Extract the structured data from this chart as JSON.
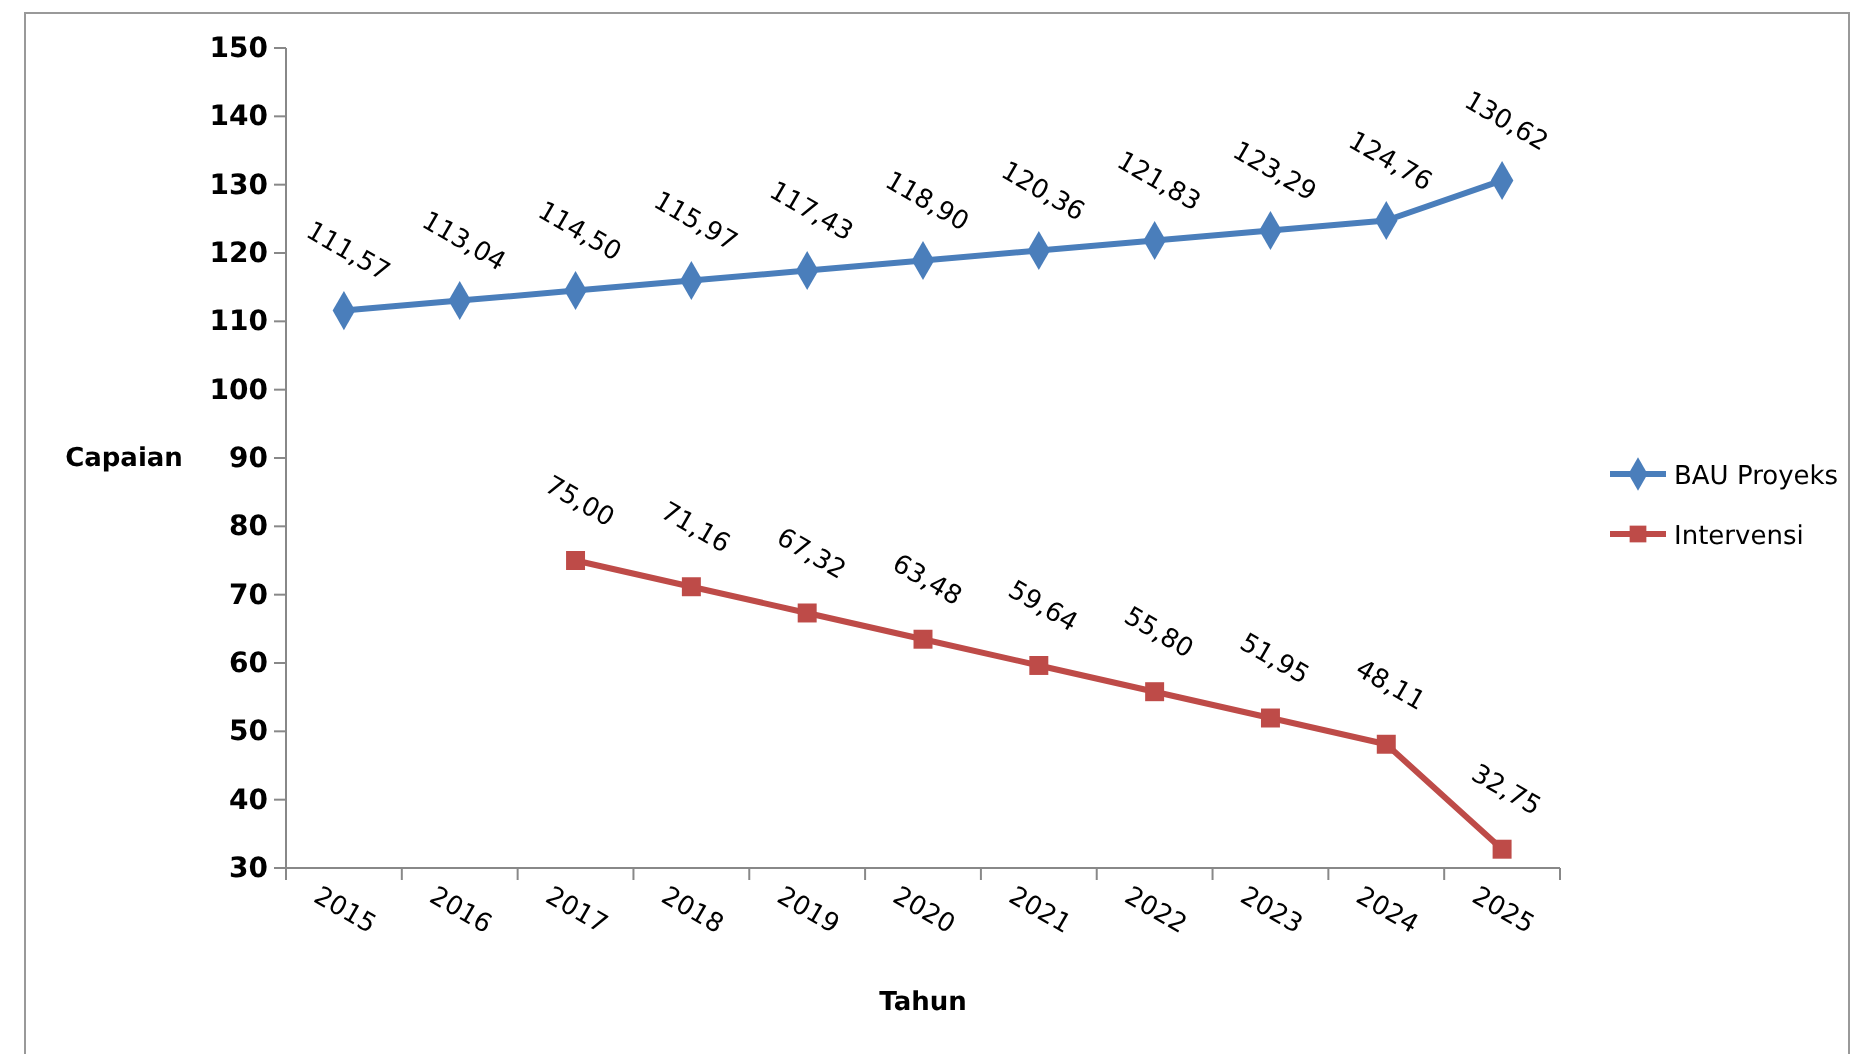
{
  "chart_data": {
    "type": "line",
    "xlabel": "Tahun",
    "ylabel": "Capaian",
    "categories": [
      "2015",
      "2016",
      "2017",
      "2018",
      "2019",
      "2020",
      "2021",
      "2022",
      "2023",
      "2024",
      "2025"
    ],
    "series": [
      {
        "name": "BAU Proyeks",
        "color": "#4a7ebb",
        "marker": "diamond",
        "values": [
          111.57,
          113.04,
          114.5,
          115.97,
          117.43,
          118.9,
          120.36,
          121.83,
          123.29,
          124.76,
          130.62
        ],
        "value_labels": [
          "111,57",
          "113,04",
          "114,50",
          "115,97",
          "117,43",
          "118,90",
          "120,36",
          "121,83",
          "123,29",
          "124,76",
          "130,62"
        ]
      },
      {
        "name": "Intervensi",
        "color": "#be4b48",
        "marker": "square",
        "values": [
          null,
          null,
          75,
          71.16,
          67.32,
          63.48,
          59.64,
          55.8,
          51.95,
          48.11,
          32.75
        ],
        "value_labels": [
          null,
          null,
          "75,00",
          "71,16",
          "67,32",
          "63,48",
          "59,64",
          "55,80",
          "51,95",
          "48,11",
          "32,75"
        ]
      }
    ],
    "ylim": [
      30,
      150
    ],
    "yticks": [
      30,
      40,
      50,
      60,
      70,
      80,
      90,
      100,
      110,
      120,
      130,
      140,
      150
    ],
    "grid": false,
    "legend": "right"
  }
}
